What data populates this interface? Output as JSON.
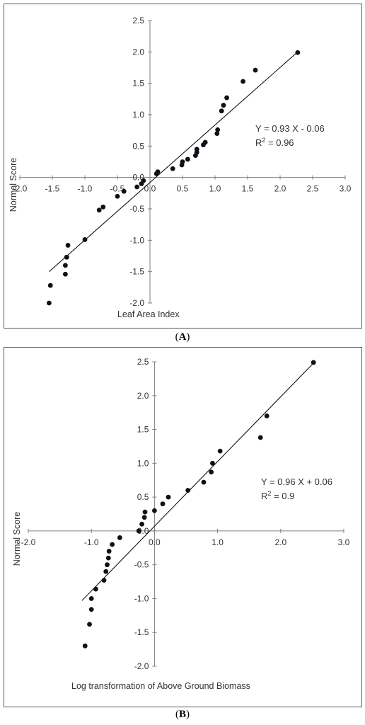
{
  "panels": [
    {
      "label_open": "(",
      "label_letter": "A",
      "label_close": ")",
      "chart_data": {
        "type": "scatter",
        "title": "",
        "xlabel": "Leaf Area Index",
        "ylabel": "Normal Score",
        "xlim": [
          -2.0,
          3.0
        ],
        "ylim": [
          -2.0,
          2.5
        ],
        "x_ticks": [
          "-2.0",
          "-1.5",
          "-1.0",
          "-0.5",
          "0.0",
          "0.5",
          "1.0",
          "1.5",
          "2.0",
          "2.5",
          "3.0"
        ],
        "y_ticks": [
          "-2.0",
          "-1.5",
          "-1.0",
          "-0.5",
          "0.0",
          "0.5",
          "1.0",
          "1.5",
          "2.0",
          "2.5"
        ],
        "x_tick_values": [
          -2.0,
          -1.5,
          -1.0,
          -0.5,
          0.0,
          0.5,
          1.0,
          1.5,
          2.0,
          2.5,
          3.0
        ],
        "y_tick_values": [
          -2.0,
          -1.5,
          -1.0,
          -0.5,
          0.0,
          0.5,
          1.0,
          1.5,
          2.0,
          2.5
        ],
        "grid": false,
        "equation": "Y  = 0.93 X - 0.06",
        "r2_prefix": "R",
        "r2_sup": "2",
        "r2_suffix": " = 0.96",
        "fit_line": {
          "x": [
            -1.55,
            2.27
          ],
          "y": [
            -1.5,
            2.0
          ]
        },
        "points": {
          "x": [
            -1.55,
            -1.53,
            -1.3,
            -1.3,
            -1.28,
            -1.28,
            -1.26,
            -1.0,
            -0.78,
            -0.72,
            -0.5,
            -0.4,
            -0.2,
            -0.13,
            -0.1,
            0.1,
            0.12,
            0.35,
            0.49,
            0.5,
            0.58,
            0.7,
            0.72,
            0.72,
            0.82,
            0.85,
            1.03,
            1.04,
            1.1,
            1.13,
            1.18,
            1.43,
            1.62,
            2.27
          ],
          "y": [
            -2.0,
            -1.72,
            -1.54,
            -1.4,
            -1.27,
            -1.27,
            -1.08,
            -0.99,
            -0.52,
            -0.47,
            -0.3,
            -0.22,
            -0.15,
            -0.1,
            -0.05,
            0.06,
            0.09,
            0.14,
            0.2,
            0.25,
            0.29,
            0.35,
            0.4,
            0.45,
            0.52,
            0.56,
            0.7,
            0.76,
            1.06,
            1.15,
            1.27,
            1.53,
            1.71,
            1.99
          ]
        }
      }
    },
    {
      "label_open": "(",
      "label_letter": "B",
      "label_close": ")",
      "chart_data": {
        "type": "scatter",
        "title": "",
        "xlabel": "Log transformation of Above Ground Biomass",
        "ylabel": "Normal Score",
        "xlim": [
          -2.0,
          3.0
        ],
        "ylim": [
          -2.0,
          2.5
        ],
        "x_ticks": [
          "-2.0",
          "-1.0",
          "0.0",
          "1.0",
          "2.0",
          "3.0"
        ],
        "y_ticks": [
          "-2.0",
          "-1.5",
          "-1.0",
          "-0.5",
          "0.0",
          "0.5",
          "1.0",
          "1.5",
          "2.0",
          "2.5"
        ],
        "x_tick_values": [
          -2.0,
          -1.0,
          0.0,
          1.0,
          2.0,
          3.0
        ],
        "y_tick_values": [
          -2.0,
          -1.5,
          -1.0,
          -0.5,
          0.0,
          0.5,
          1.0,
          1.5,
          2.0,
          2.5
        ],
        "grid": false,
        "equation": "Y  = 0.96 X + 0.06",
        "r2_prefix": "R",
        "r2_sup": "2",
        "r2_suffix": " = 0.9",
        "fit_line": {
          "x": [
            -1.15,
            2.52
          ],
          "y": [
            -1.03,
            2.48
          ]
        },
        "points": {
          "x": [
            -1.1,
            -1.03,
            -1.0,
            -1.0,
            -0.93,
            -0.8,
            -0.77,
            -0.75,
            -0.73,
            -0.72,
            -0.67,
            -0.55,
            -0.25,
            -0.2,
            -0.16,
            -0.15,
            0.0,
            0.13,
            0.22,
            0.53,
            0.78,
            0.9,
            0.92,
            1.04,
            1.68,
            1.78,
            2.52
          ],
          "y": [
            -1.7,
            -1.38,
            -1.16,
            -1.0,
            -0.86,
            -0.73,
            -0.6,
            -0.5,
            -0.4,
            -0.3,
            -0.2,
            -0.1,
            0.0,
            0.1,
            0.2,
            0.28,
            0.3,
            0.4,
            0.5,
            0.6,
            0.72,
            0.87,
            1.0,
            1.18,
            1.38,
            1.7,
            2.49
          ]
        }
      }
    }
  ]
}
